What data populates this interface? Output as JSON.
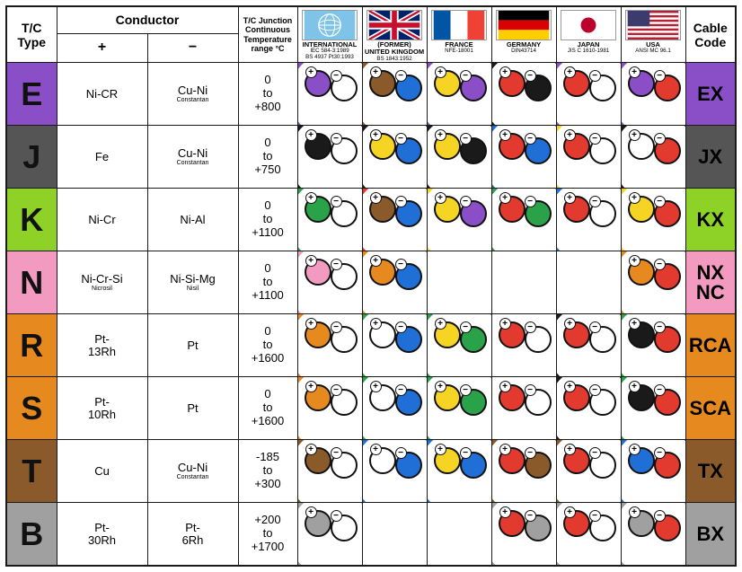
{
  "headers": {
    "type": "T/C\nType",
    "conductor": "Conductor",
    "plus": "+",
    "minus": "−",
    "temp": "T/C Junction Continuous Temperature range °C",
    "code": "Cable\nCode"
  },
  "countries": [
    {
      "key": "intl",
      "label": "INTERNATIONAL",
      "std": "IEC 584-3:1989\nBS 4937 Pt30:1993",
      "flag_svg": "globe"
    },
    {
      "key": "uk",
      "label": "(FORMER)\nUNITED KINGDOM",
      "std": "BS 1843:1952",
      "flag_svg": "uk"
    },
    {
      "key": "france",
      "label": "FRANCE",
      "std": "NFE-18001",
      "flag_svg": "fr"
    },
    {
      "key": "germany",
      "label": "GERMANY",
      "std": "DIN43714",
      "flag_svg": "de"
    },
    {
      "key": "japan",
      "label": "JAPAN",
      "std": "JIS C 1610-1981",
      "flag_svg": "jp"
    },
    {
      "key": "usa",
      "label": "USA",
      "std": "ANSI MC 96.1",
      "flag_svg": "us"
    }
  ],
  "colors": {
    "purple": "#8a4fc7",
    "olive": "#8a7a3a",
    "brown": "#8b5a2b",
    "blue": "#1f6fd6",
    "yellow": "#f6d423",
    "red": "#e33a2f",
    "green": "#2aa24a",
    "black": "#1a1a1a",
    "white": "#ffffff",
    "orange": "#e68a1f",
    "pink": "#f29abf",
    "gray": "#a0a0a0",
    "darkgray": "#555555",
    "limegreen": "#8ed228"
  },
  "rows": [
    {
      "type": "E",
      "type_bg": "purple",
      "plus": "Ni-CR",
      "plus_sub": "",
      "minus": "Cu-Ni",
      "minus_sub": "Constantan",
      "temp": "0\nto\n+800",
      "code": "EX",
      "code_bg": "purple",
      "cables": {
        "intl": {
          "sheath": "purple",
          "p": "purple",
          "m": "white"
        },
        "uk": {
          "sheath": "brown",
          "p": "brown",
          "m": "blue"
        },
        "france": {
          "sheath": "purple",
          "p": "yellow",
          "m": "purple"
        },
        "germany": {
          "sheath": "black",
          "p": "red",
          "m": "black"
        },
        "japan": {
          "sheath": "purple",
          "p": "red",
          "m": "white"
        },
        "usa": {
          "sheath": "purple",
          "p": "purple",
          "m": "red"
        }
      }
    },
    {
      "type": "J",
      "type_bg": "darkgray",
      "plus": "Fe",
      "plus_sub": "",
      "minus": "Cu-Ni",
      "minus_sub": "Constantan",
      "temp": "0\nto\n+750",
      "code": "JX",
      "code_bg": "darkgray",
      "cables": {
        "intl": {
          "sheath": "black",
          "p": "black",
          "m": "white"
        },
        "uk": {
          "sheath": "black",
          "p": "yellow",
          "m": "blue"
        },
        "france": {
          "sheath": "black",
          "p": "yellow",
          "m": "black"
        },
        "germany": {
          "sheath": "blue",
          "p": "red",
          "m": "blue"
        },
        "japan": {
          "sheath": "yellow",
          "p": "red",
          "m": "white"
        },
        "usa": {
          "sheath": "black",
          "p": "white",
          "m": "red"
        }
      }
    },
    {
      "type": "K",
      "type_bg": "limegreen",
      "plus": "Ni-Cr",
      "plus_sub": "",
      "minus": "Ni-Al",
      "minus_sub": "",
      "temp": "0\nto\n+1100",
      "code": "KX",
      "code_bg": "limegreen",
      "cables": {
        "intl": {
          "sheath": "green",
          "p": "green",
          "m": "white"
        },
        "uk": {
          "sheath": "red",
          "p": "brown",
          "m": "blue"
        },
        "france": {
          "sheath": "yellow",
          "p": "yellow",
          "m": "purple"
        },
        "germany": {
          "sheath": "green",
          "p": "red",
          "m": "green"
        },
        "japan": {
          "sheath": "blue",
          "p": "red",
          "m": "white"
        },
        "usa": {
          "sheath": "yellow",
          "p": "yellow",
          "m": "red"
        }
      }
    },
    {
      "type": "N",
      "type_bg": "pink",
      "plus": "Ni-Cr-Si",
      "plus_sub": "Nicrosil",
      "minus": "Ni-Si-Mg",
      "minus_sub": "Nisil",
      "temp": "0\nto\n+1100",
      "code": "NX\nNC",
      "code_bg": "pink",
      "cables": {
        "intl": {
          "sheath": "pink",
          "p": "pink",
          "m": "white"
        },
        "uk": {
          "sheath": "orange",
          "p": "orange",
          "m": "blue"
        },
        "france": null,
        "germany": null,
        "japan": null,
        "usa": {
          "sheath": "orange",
          "p": "orange",
          "m": "red"
        }
      }
    },
    {
      "type": "R",
      "type_bg": "orange",
      "plus": "Pt-\n13Rh",
      "plus_sub": "",
      "minus": "Pt",
      "minus_sub": "",
      "temp": "0\nto\n+1600",
      "code": "RCA",
      "code_bg": "orange",
      "cables": {
        "intl": {
          "sheath": "orange",
          "p": "orange",
          "m": "white"
        },
        "uk": {
          "sheath": "green",
          "p": "white",
          "m": "blue"
        },
        "france": {
          "sheath": "green",
          "p": "yellow",
          "m": "green"
        },
        "germany": {
          "sheath": "white",
          "p": "red",
          "m": "white"
        },
        "japan": {
          "sheath": "black",
          "p": "red",
          "m": "white"
        },
        "usa": {
          "sheath": "green",
          "p": "black",
          "m": "red"
        }
      }
    },
    {
      "type": "S",
      "type_bg": "orange",
      "plus": "Pt-\n10Rh",
      "plus_sub": "",
      "minus": "Pt",
      "minus_sub": "",
      "temp": "0\nto\n+1600",
      "code": "SCA",
      "code_bg": "orange",
      "cables": {
        "intl": {
          "sheath": "orange",
          "p": "orange",
          "m": "white"
        },
        "uk": {
          "sheath": "green",
          "p": "white",
          "m": "blue"
        },
        "france": {
          "sheath": "green",
          "p": "yellow",
          "m": "green"
        },
        "germany": {
          "sheath": "white",
          "p": "red",
          "m": "white"
        },
        "japan": {
          "sheath": "black",
          "p": "red",
          "m": "white"
        },
        "usa": {
          "sheath": "green",
          "p": "black",
          "m": "red"
        }
      }
    },
    {
      "type": "T",
      "type_bg": "brown",
      "plus": "Cu",
      "plus_sub": "",
      "minus": "Cu-Ni",
      "minus_sub": "Constantan",
      "temp": "-185\nto\n+300",
      "code": "TX",
      "code_bg": "brown",
      "cables": {
        "intl": {
          "sheath": "brown",
          "p": "brown",
          "m": "white"
        },
        "uk": {
          "sheath": "blue",
          "p": "white",
          "m": "blue"
        },
        "france": {
          "sheath": "blue",
          "p": "yellow",
          "m": "blue"
        },
        "germany": {
          "sheath": "brown",
          "p": "red",
          "m": "brown"
        },
        "japan": {
          "sheath": "brown",
          "p": "red",
          "m": "white"
        },
        "usa": {
          "sheath": "blue",
          "p": "blue",
          "m": "red"
        }
      }
    },
    {
      "type": "B",
      "type_bg": "gray",
      "plus": "Pt-\n30Rh",
      "plus_sub": "",
      "minus": "Pt-\n6Rh",
      "minus_sub": "",
      "temp": "+200\nto\n+1700",
      "code": "BX",
      "code_bg": "gray",
      "cables": {
        "intl": {
          "sheath": "gray",
          "p": "gray",
          "m": "white"
        },
        "uk": null,
        "france": null,
        "germany": {
          "sheath": "gray",
          "p": "red",
          "m": "gray"
        },
        "japan": {
          "sheath": "gray",
          "p": "red",
          "m": "white"
        },
        "usa": {
          "sheath": "gray",
          "p": "gray",
          "m": "red"
        }
      }
    }
  ],
  "flag_colors": {
    "globe_bg": "#7fc4e8",
    "globe_lines": "#ffffff",
    "uk_blue": "#012169",
    "uk_red": "#c8102e",
    "uk_white": "#ffffff",
    "fr_blue": "#0055a4",
    "fr_white": "#ffffff",
    "fr_red": "#ef4135",
    "de_black": "#000000",
    "de_red": "#dd0000",
    "de_gold": "#ffce00",
    "jp_white": "#ffffff",
    "jp_red": "#bc002d",
    "us_red": "#b22234",
    "us_white": "#ffffff",
    "us_blue": "#3c3b6e"
  }
}
